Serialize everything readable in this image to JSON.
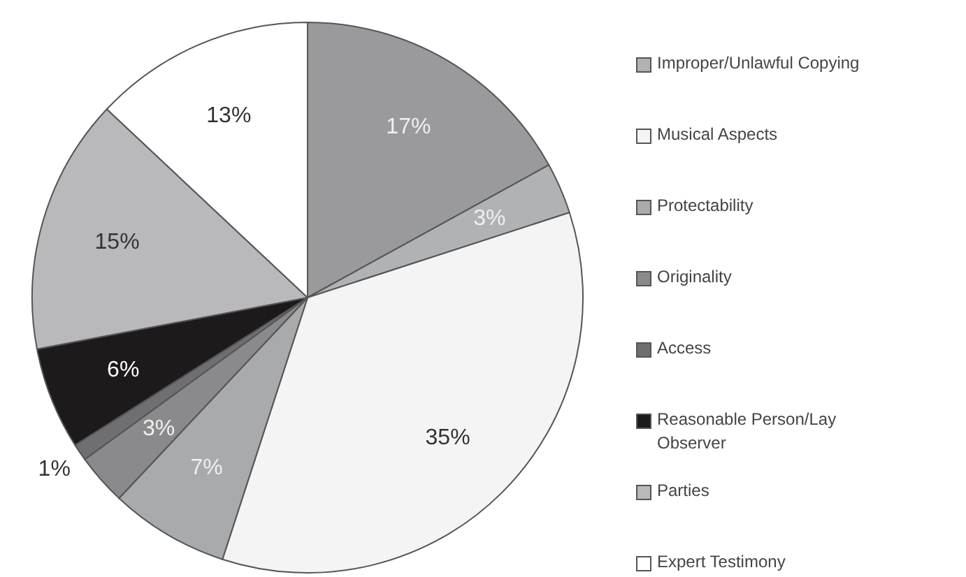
{
  "chart_data": {
    "type": "pie",
    "categories": [
      null,
      "Improper/Unlawful Copying",
      "Musical Aspects",
      "Protectability",
      "Originality",
      "Access",
      "Reasonable Person/Lay Observer",
      "Parties",
      "Expert Testimony"
    ],
    "values": [
      17,
      3,
      35,
      7,
      3,
      1,
      6,
      15,
      13
    ],
    "colors": [
      "#9a9a9c",
      "#b1b2b4",
      "#f4f4f4",
      "#a9aaac",
      "#8a8a8c",
      "#6f6f71",
      "#1c1a1b",
      "#b9b9bb",
      "#ffffff"
    ],
    "value_labels": [
      "17%",
      "3%",
      "35%",
      "7%",
      "3%",
      "1%",
      "6%",
      "15%",
      "13%"
    ],
    "legend": "right"
  }
}
